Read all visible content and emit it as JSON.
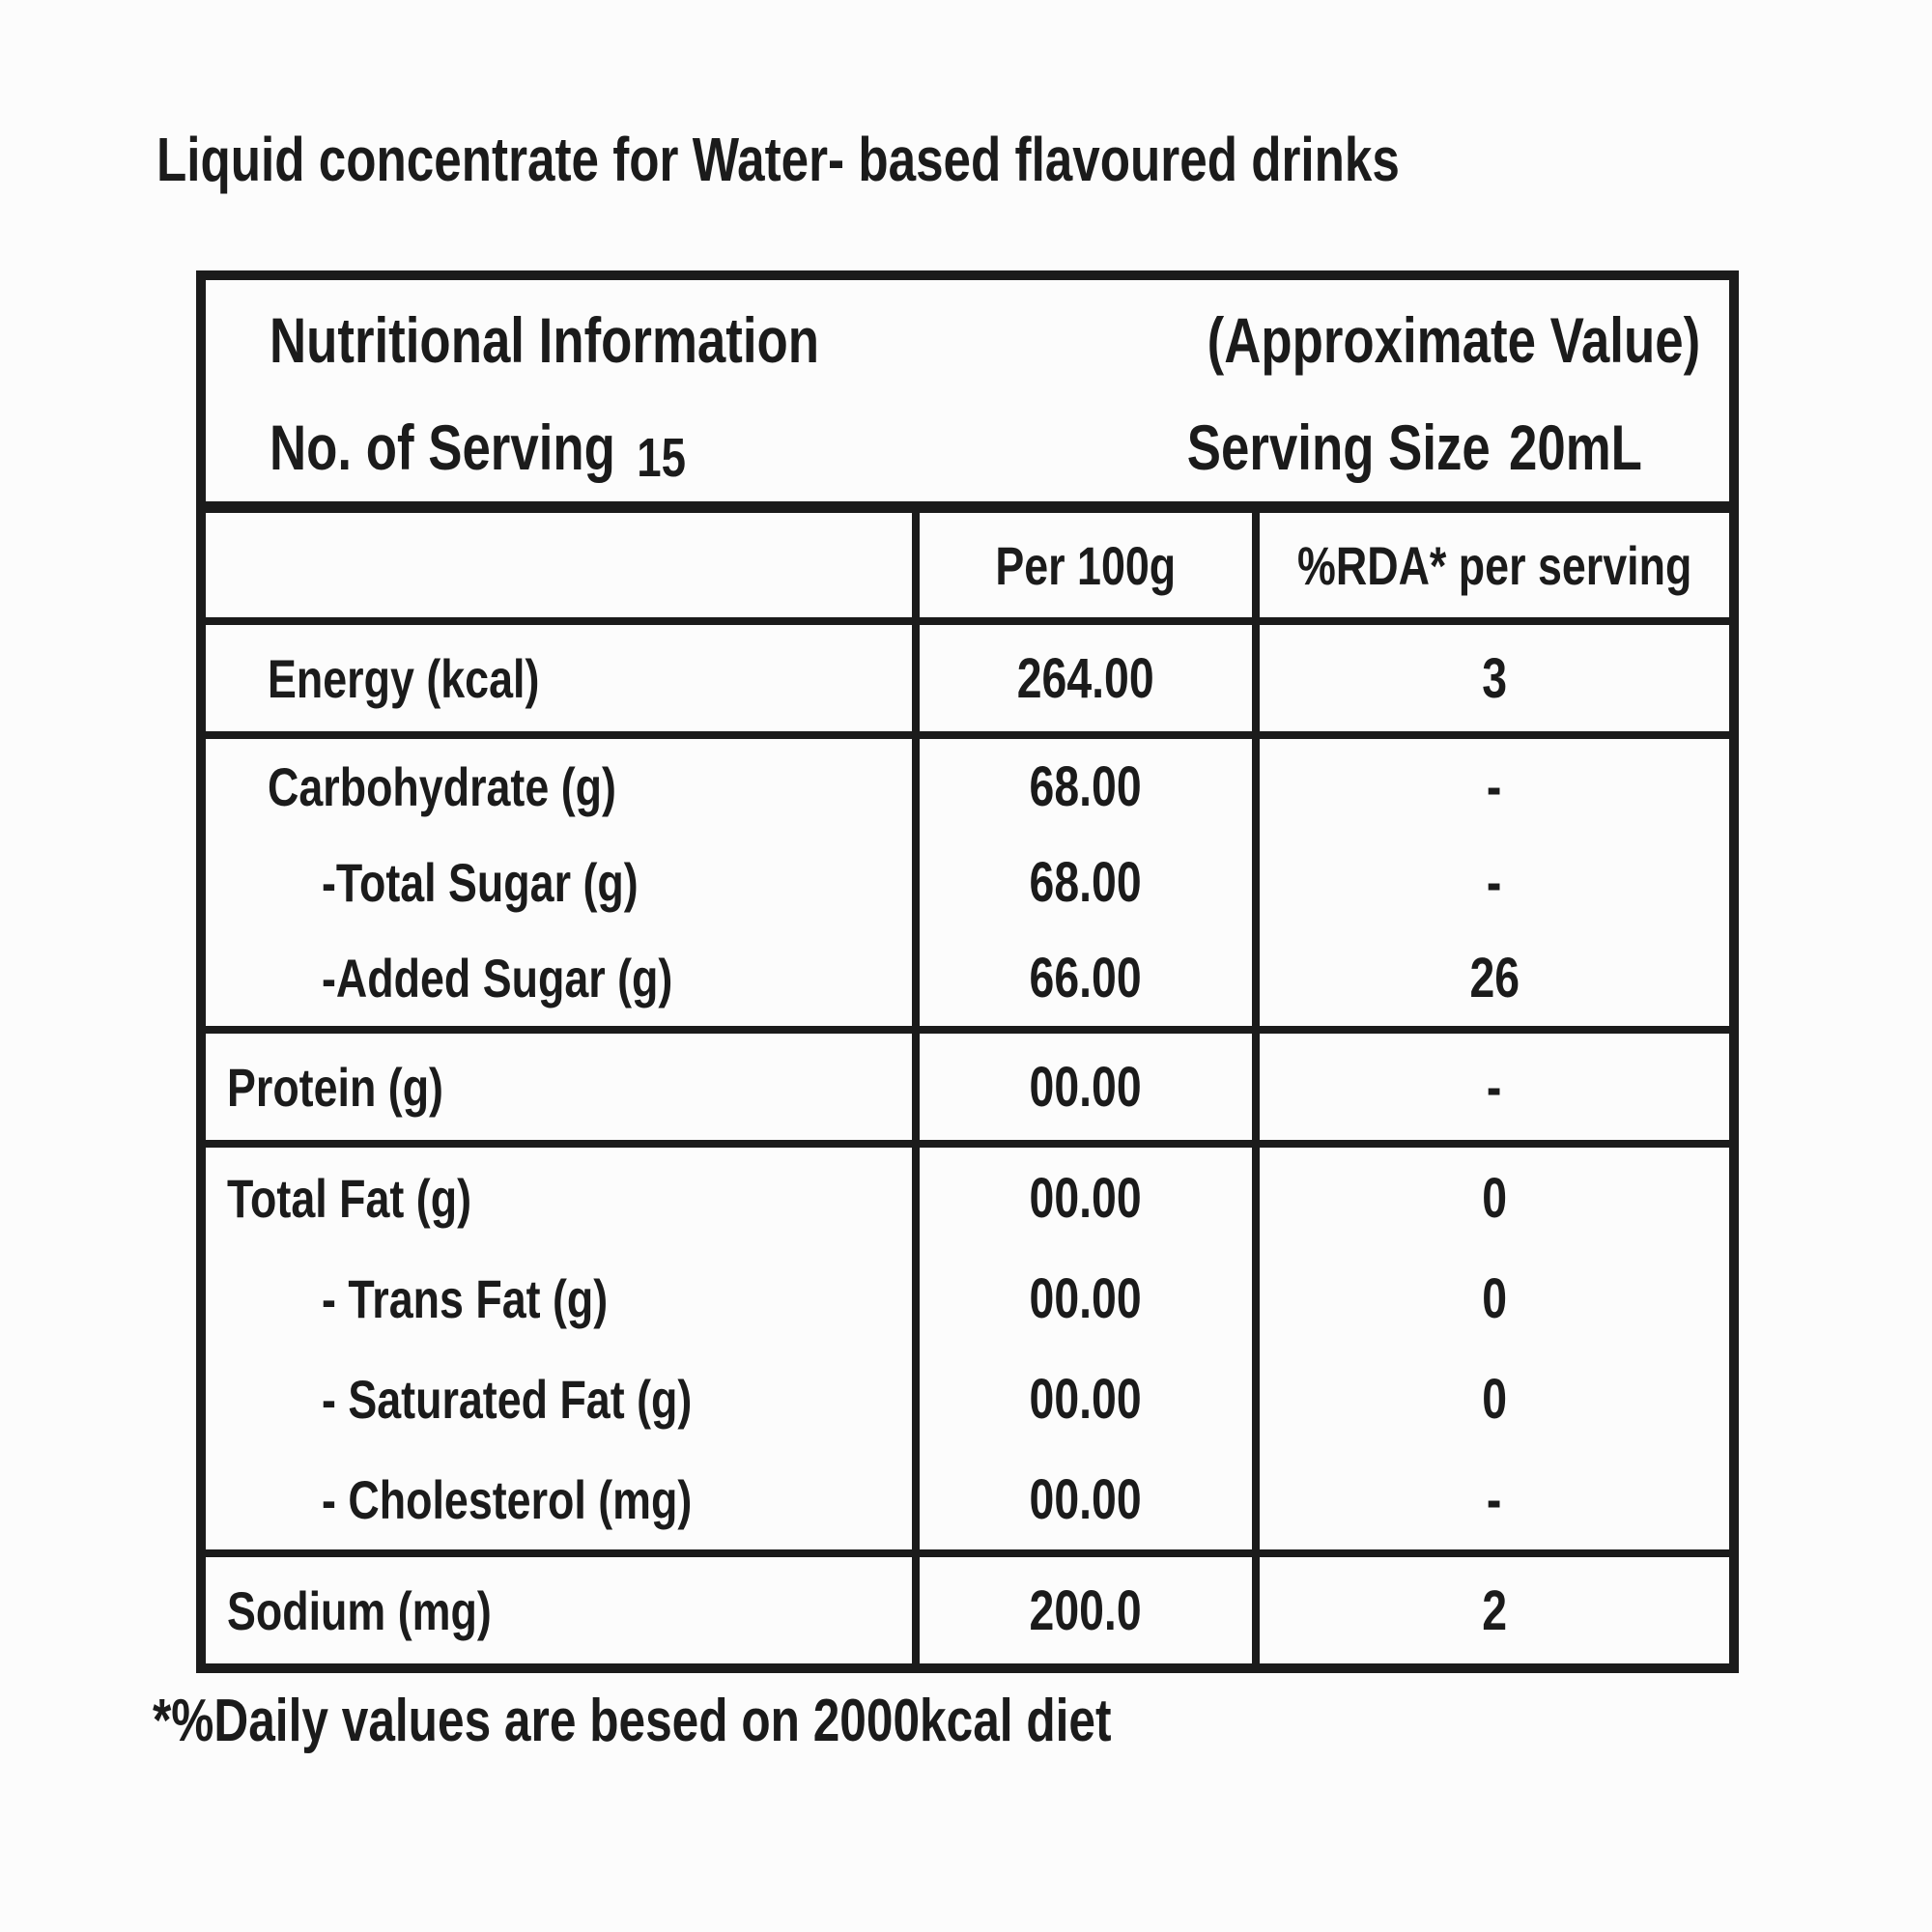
{
  "page": {
    "title": "Liquid concentrate for Water- based flavoured drinks",
    "footnote": "*%Daily values are besed on 2000kcal diet"
  },
  "colors": {
    "ink": "#1b1b1b",
    "background": "#fcfcfc"
  },
  "table": {
    "header": {
      "title": "Nutritional Information",
      "approx": "(Approximate Value)",
      "servings_label": "No. of Serving",
      "servings_value": "15",
      "serving_size_label": "Serving Size",
      "serving_size_value": "20mL"
    },
    "columns": {
      "col1": "",
      "col2": "Per 100g",
      "col3": "%RDA* per serving"
    },
    "sections": [
      {
        "lines": [
          {
            "label": "Energy (kcal)",
            "indent": 1,
            "per100g": "264.00",
            "rda": "3"
          }
        ]
      },
      {
        "lines": [
          {
            "label": "Carbohydrate (g)",
            "indent": 1,
            "per100g": "68.00",
            "rda": "-"
          },
          {
            "label": "-Total Sugar (g)",
            "indent": 2,
            "per100g": "68.00",
            "rda": "-"
          },
          {
            "label": "-Added Sugar (g)",
            "indent": 2,
            "per100g": "66.00",
            "rda": "26"
          }
        ]
      },
      {
        "lines": [
          {
            "label": "Protein (g)",
            "indent": 0,
            "per100g": "00.00",
            "rda": "-"
          }
        ]
      },
      {
        "lines": [
          {
            "label": "Total Fat (g)",
            "indent": 0,
            "per100g": "00.00",
            "rda": "0"
          },
          {
            "label": "- Trans Fat (g)",
            "indent": 2,
            "per100g": "00.00",
            "rda": "0"
          },
          {
            "label": "- Saturated Fat (g)",
            "indent": 2,
            "per100g": "00.00",
            "rda": "0"
          },
          {
            "label": "- Cholesterol (mg)",
            "indent": 2,
            "per100g": "00.00",
            "rda": "-"
          }
        ]
      },
      {
        "lines": [
          {
            "label": "Sodium (mg)",
            "indent": 0,
            "per100g": "200.0",
            "rda": "2"
          }
        ]
      }
    ]
  }
}
